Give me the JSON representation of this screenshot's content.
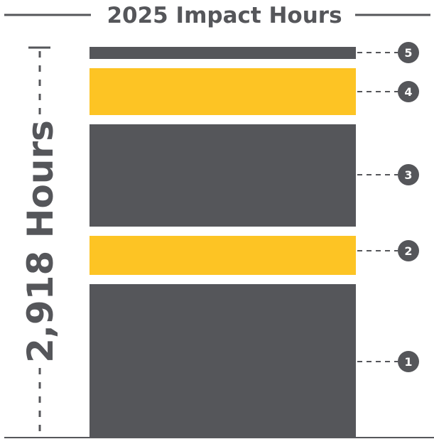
{
  "chart_data": {
    "type": "bar",
    "title": "2025 Impact Hours",
    "total_label": "2,918 Hours",
    "total_hours": 2918,
    "segments": [
      {
        "label": "1",
        "color": "#55565a"
      },
      {
        "label": "2",
        "color": "#fdc424"
      },
      {
        "label": "3",
        "color": "#55565a"
      },
      {
        "label": "4",
        "color": "#fdc424"
      },
      {
        "label": "5",
        "color": "#55565a"
      }
    ],
    "colors": {
      "dark": "#55565a",
      "accent": "#fdc424"
    }
  }
}
